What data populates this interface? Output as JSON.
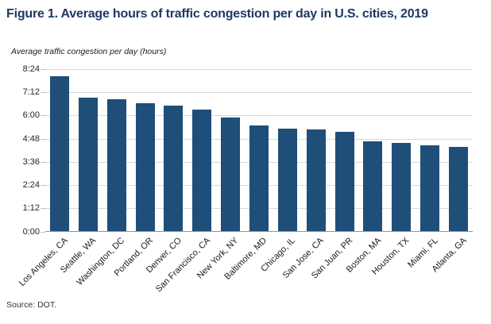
{
  "chart_data": {
    "type": "bar",
    "title": "Figure 1. Average hours of traffic congestion per day in U.S. cities, 2019",
    "ylabel": "Average traffic congestion per day (hours)",
    "source": "Source: DOT.",
    "categories": [
      "Los Angeles, CA",
      "Seattle, WA",
      "Washington, DC",
      "Portland, OR",
      "Denver, CO",
      "San Francisco, CA",
      "New York, NY",
      "Baltimore, MD",
      "Chicago, IL",
      "San Jose, CA",
      "San Juan, PR",
      "Boston, MA",
      "Houston, TX",
      "Miami, FL",
      "Atlanta, GA"
    ],
    "values_hhmm": [
      "8:00",
      "6:54",
      "6:48",
      "6:35",
      "6:27",
      "6:15",
      "5:51",
      "5:27",
      "5:17",
      "5:14",
      "5:06",
      "4:37",
      "4:33",
      "4:25",
      "4:21"
    ],
    "values_hours": [
      8.0,
      6.9,
      6.8,
      6.58,
      6.45,
      6.25,
      5.85,
      5.45,
      5.28,
      5.23,
      5.1,
      4.62,
      4.55,
      4.42,
      4.35
    ],
    "ylim_hours": [
      0,
      8.4
    ],
    "ytick_labels_top_to_bottom": [
      "8:24",
      "7:12",
      "6:00",
      "4:48",
      "3:36",
      "2:24",
      "1:12",
      "0:00"
    ],
    "grid": true,
    "legend": "none",
    "bar_color": "#1f4e79",
    "title_color": "#1f3864",
    "gridline_color": "#d9d9d9"
  }
}
